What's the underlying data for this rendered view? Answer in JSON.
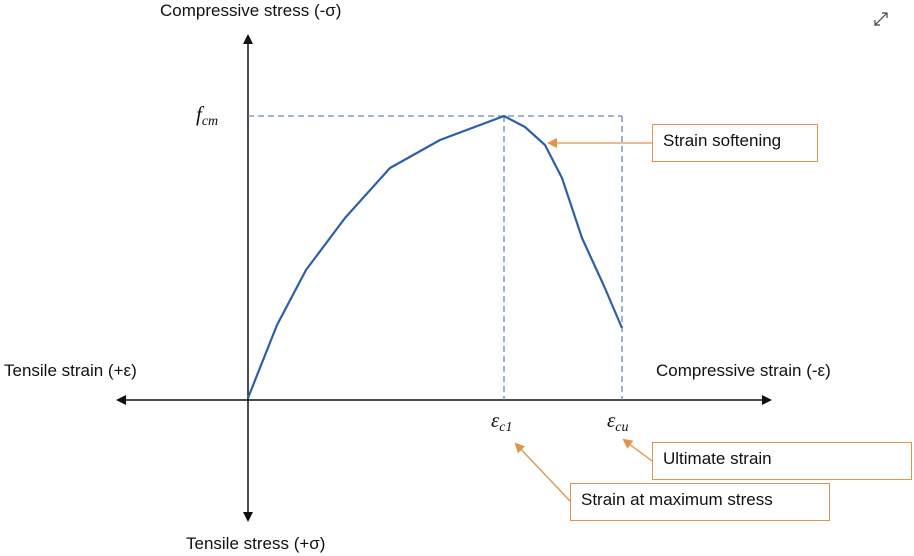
{
  "axes": {
    "y_top": "Compressive stress (-σ)",
    "y_bottom": "Tensile stress (+σ)",
    "x_left": "Tensile strain (+ε)",
    "x_right": "Compressive strain (-ε)"
  },
  "symbols": {
    "fcm_main": "f",
    "fcm_sub": "cm",
    "ec1_main": "ε",
    "ec1_sub": "c1",
    "ecu_main": "ε",
    "ecu_sub": "cu"
  },
  "callouts": {
    "softening": "Strain softening",
    "ultimate": "Ultimate strain",
    "max_stress": "Strain at maximum stress"
  },
  "colors": {
    "curve": "#2e5fa6",
    "dashed": "#6b86b3",
    "callout_border": "#e0934a",
    "axis": "#111111"
  },
  "icons": {
    "expand": "expand-icon"
  }
}
